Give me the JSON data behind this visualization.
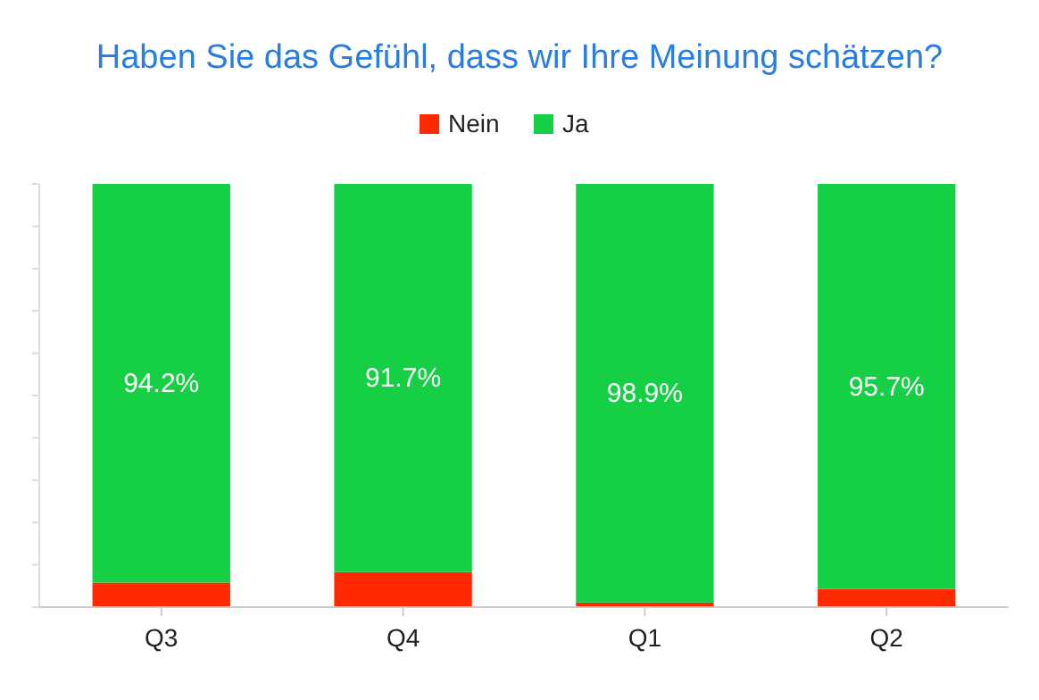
{
  "chart_data": {
    "type": "bar",
    "title": "Haben Sie das Gefühl, dass wir Ihre Meinung schätzen?",
    "categories": [
      "Q3",
      "Q4",
      "Q1",
      "Q2"
    ],
    "stacked": true,
    "legend": "top",
    "tick_labels": "x",
    "ylim": [
      0,
      100
    ],
    "yticks": [
      {
        "value": 0,
        "label": null
      },
      {
        "value": 10,
        "label": null
      },
      {
        "value": 20,
        "label": null
      },
      {
        "value": 30,
        "label": null
      },
      {
        "value": 40,
        "label": null
      },
      {
        "value": 50,
        "label": null
      },
      {
        "value": 60,
        "label": null
      },
      {
        "value": 70,
        "label": null
      },
      {
        "value": 80,
        "label": null
      },
      {
        "value": 90,
        "label": null
      },
      {
        "value": 100,
        "label": null
      }
    ],
    "series": [
      {
        "name": "Nein",
        "color": "#ff2a00",
        "values": [
          5.8,
          8.3,
          1.1,
          4.3
        ]
      },
      {
        "name": "Ja",
        "color": "#15cf45",
        "values": [
          94.2,
          91.7,
          98.9,
          95.7
        ],
        "value_labels": [
          "94.2%",
          "91.7%",
          "98.9%",
          "95.7%"
        ]
      }
    ]
  }
}
